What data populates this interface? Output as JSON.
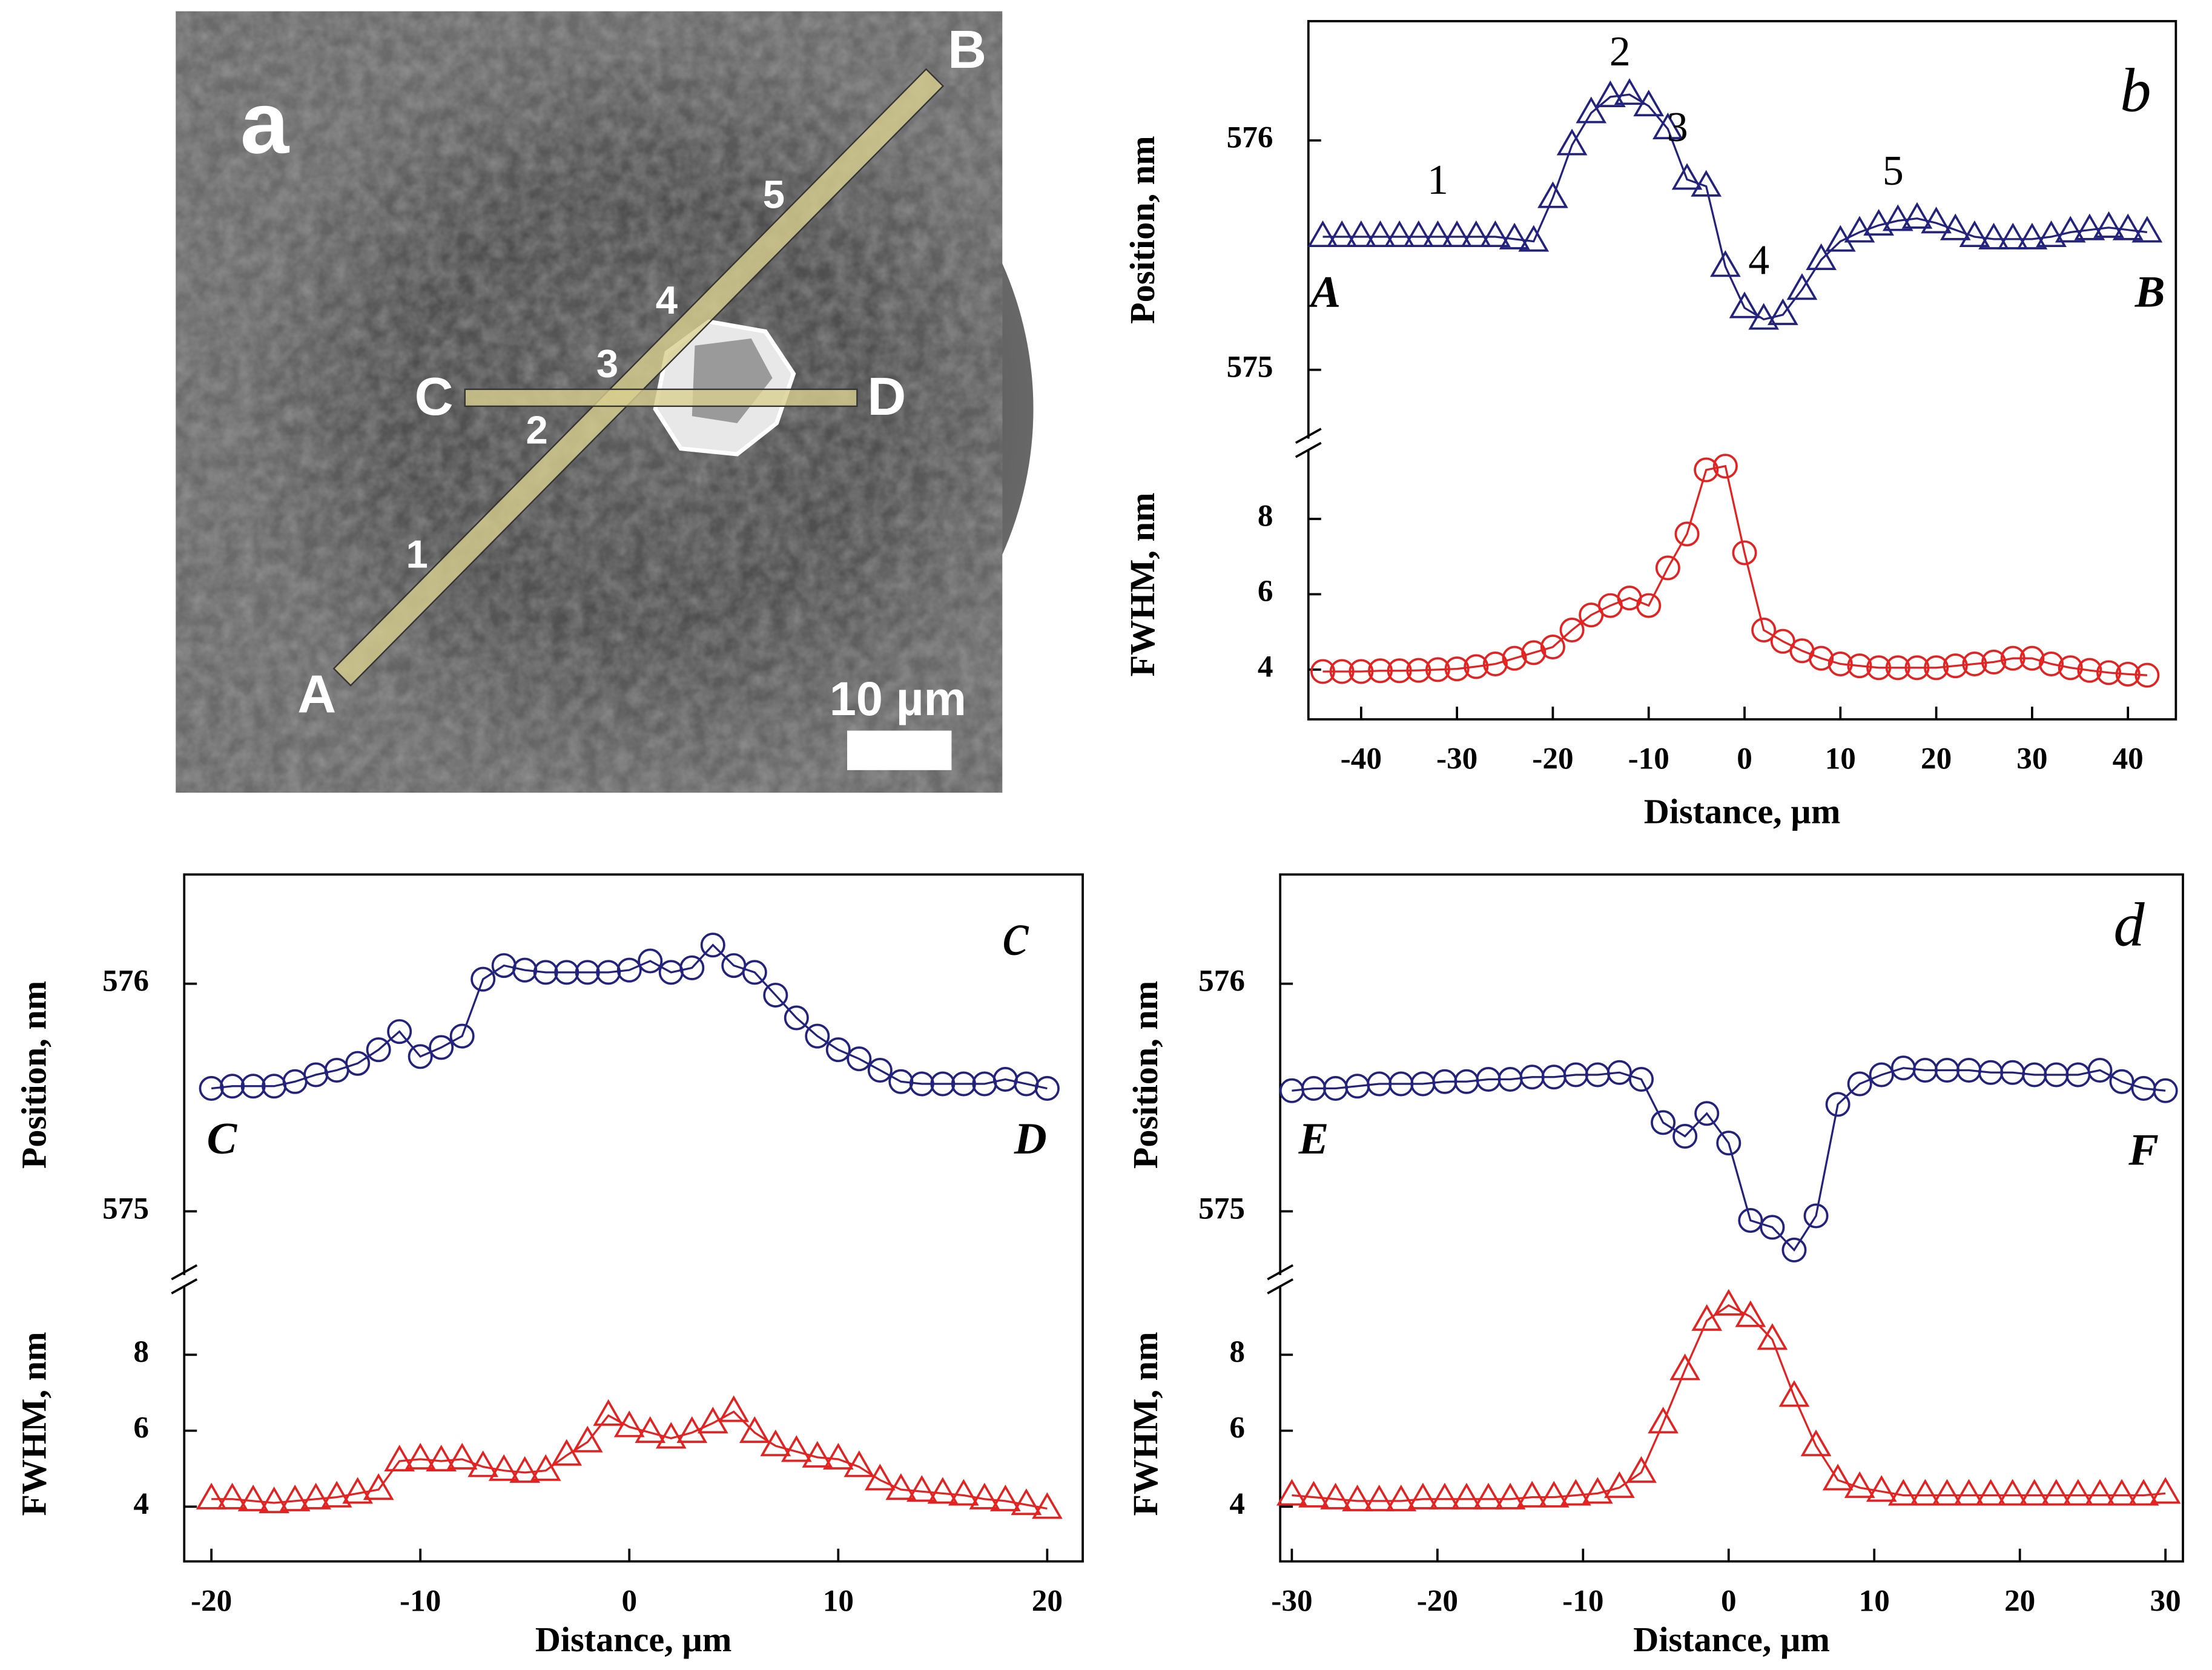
{
  "image_panel": {
    "panel_label": "a",
    "points": [
      "A",
      "B",
      "C",
      "D"
    ],
    "markers": [
      "1",
      "2",
      "3",
      "4",
      "5"
    ],
    "scale_bar": "10 µm"
  },
  "chart_data": [
    {
      "type": "line",
      "panel_label": {
        "text": "b",
        "x": 40.8,
        "y": 576.19
      },
      "xlabel": "Distance, µm",
      "x": [
        -44,
        -42,
        -40,
        -38,
        -36,
        -34,
        -32,
        -30,
        -28,
        -26,
        -24,
        -22,
        -20,
        -18,
        -16,
        -14,
        -12,
        -10,
        -8,
        -6,
        -4,
        -2,
        0,
        2,
        4,
        6,
        8,
        10,
        12,
        14,
        16,
        18,
        20,
        22,
        24,
        26,
        28,
        30,
        32,
        34,
        36,
        38,
        40,
        42
      ],
      "xlim": [
        -45.5,
        45
      ],
      "xticks": [
        -40,
        -30,
        -20,
        -10,
        0,
        10,
        20,
        30,
        40
      ],
      "subplots": [
        {
          "ylabel": "Position, nm",
          "ylim": [
            574.7,
            576.52
          ],
          "yticks": [
            575,
            576
          ],
          "color": "#23237e",
          "marker": "triangle",
          "values": [
            575.58,
            575.58,
            575.58,
            575.58,
            575.58,
            575.58,
            575.58,
            575.58,
            575.58,
            575.58,
            575.57,
            575.56,
            575.75,
            575.98,
            576.12,
            576.19,
            576.2,
            576.15,
            576.05,
            575.83,
            575.8,
            575.45,
            575.27,
            575.22,
            575.24,
            575.35,
            575.48,
            575.56,
            575.6,
            575.63,
            575.65,
            575.66,
            575.64,
            575.61,
            575.58,
            575.57,
            575.57,
            575.57,
            575.58,
            575.6,
            575.61,
            575.62,
            575.61,
            575.6
          ],
          "annotations": [
            {
              "text": "1",
              "x": -32,
              "y": 575.81
            },
            {
              "text": "2",
              "x": -13,
              "y": 576.37
            },
            {
              "text": "3",
              "x": -7,
              "y": 576.04
            },
            {
              "text": "4",
              "x": 1.5,
              "y": 575.46
            },
            {
              "text": "5",
              "x": 15.5,
              "y": 575.85
            }
          ],
          "endpoints": [
            {
              "text": "A",
              "x": -43.7,
              "y": 575.32
            },
            {
              "text": "B",
              "x": 42.3,
              "y": 575.32
            }
          ]
        },
        {
          "ylabel": "FWHM, nm",
          "ylim": [
            2.68,
            9.83
          ],
          "yticks": [
            4,
            6,
            8
          ],
          "color": "#e32222",
          "marker": "circle",
          "values": [
            3.95,
            3.95,
            3.95,
            3.97,
            3.97,
            3.98,
            4.0,
            4.02,
            4.08,
            4.15,
            4.3,
            4.45,
            4.6,
            5.05,
            5.45,
            5.7,
            5.9,
            5.7,
            6.7,
            7.6,
            9.3,
            9.4,
            7.1,
            5.05,
            4.75,
            4.5,
            4.3,
            4.15,
            4.1,
            4.05,
            4.05,
            4.05,
            4.05,
            4.1,
            4.15,
            4.2,
            4.3,
            4.3,
            4.15,
            4.05,
            3.98,
            3.92,
            3.88,
            3.85
          ]
        }
      ]
    },
    {
      "type": "line",
      "panel_label": {
        "text": "c",
        "x": 18.5,
        "y": 576.19
      },
      "xlabel": "Distance, µm",
      "x": [
        -20,
        -19,
        -18,
        -17,
        -16,
        -15,
        -14,
        -13,
        -12,
        -11,
        -10,
        -9,
        -8,
        -7,
        -6,
        -5,
        -4,
        -3,
        -2,
        -1,
        0,
        1,
        2,
        3,
        4,
        5,
        6,
        7,
        8,
        9,
        10,
        11,
        12,
        13,
        14,
        15,
        16,
        17,
        18,
        19,
        20
      ],
      "xlim": [
        -21.3,
        21.7
      ],
      "xticks": [
        -20,
        -10,
        0,
        10,
        20
      ],
      "subplots": [
        {
          "ylabel": "Position, nm",
          "ylim": [
            574.72,
            576.48
          ],
          "yticks": [
            575,
            576
          ],
          "color": "#23237e",
          "marker": "circle",
          "values": [
            575.54,
            575.55,
            575.55,
            575.55,
            575.57,
            575.6,
            575.62,
            575.65,
            575.71,
            575.79,
            575.68,
            575.72,
            575.77,
            576.02,
            576.08,
            576.06,
            576.05,
            576.05,
            576.05,
            576.05,
            576.06,
            576.1,
            576.05,
            576.07,
            576.17,
            576.08,
            576.05,
            575.95,
            575.85,
            575.77,
            575.71,
            575.67,
            575.62,
            575.57,
            575.56,
            575.56,
            575.56,
            575.56,
            575.58,
            575.56,
            575.54
          ],
          "endpoints": [
            {
              "text": "C",
              "x": -19.5,
              "y": 575.3
            },
            {
              "text": "D",
              "x": 19.2,
              "y": 575.3
            }
          ]
        },
        {
          "ylabel": "FWHM, nm",
          "ylim": [
            2.56,
            9.8
          ],
          "yticks": [
            4,
            6,
            8
          ],
          "color": "#e32222",
          "marker": "triangle",
          "values": [
            4.2,
            4.2,
            4.15,
            4.1,
            4.15,
            4.2,
            4.25,
            4.35,
            4.45,
            5.2,
            5.25,
            5.2,
            5.25,
            5.05,
            4.95,
            4.9,
            4.95,
            5.35,
            5.7,
            6.4,
            6.1,
            5.95,
            5.8,
            5.95,
            6.2,
            6.5,
            5.95,
            5.6,
            5.45,
            5.3,
            5.25,
            5.05,
            4.7,
            4.45,
            4.4,
            4.35,
            4.3,
            4.2,
            4.15,
            4.05,
            3.95
          ]
        }
      ]
    },
    {
      "type": "line",
      "panel_label": {
        "text": "d",
        "x": 27.5,
        "y": 576.23
      },
      "xlabel": "Distance, µm",
      "x": [
        -30,
        -28.5,
        -27,
        -25.5,
        -24,
        -22.5,
        -21,
        -19.5,
        -18,
        -16.5,
        -15,
        -13.5,
        -12,
        -10.5,
        -9,
        -7.5,
        -6,
        -4.5,
        -3,
        -1.5,
        0,
        1.5,
        3,
        4.5,
        6,
        7.5,
        9,
        10.5,
        12,
        13.5,
        15,
        16.5,
        18,
        19.5,
        21,
        22.5,
        24,
        25.5,
        27,
        28.5,
        30
      ],
      "xlim": [
        -30.8,
        31.2
      ],
      "xticks": [
        -30,
        -20,
        -10,
        0,
        10,
        20,
        30
      ],
      "subplots": [
        {
          "ylabel": "Position, nm",
          "ylim": [
            574.72,
            576.48
          ],
          "yticks": [
            575,
            576
          ],
          "color": "#23237e",
          "marker": "circle",
          "values": [
            575.53,
            575.54,
            575.54,
            575.55,
            575.56,
            575.56,
            575.56,
            575.57,
            575.57,
            575.58,
            575.58,
            575.59,
            575.59,
            575.6,
            575.6,
            575.61,
            575.58,
            575.39,
            575.33,
            575.43,
            575.3,
            574.96,
            574.93,
            574.83,
            574.98,
            575.47,
            575.56,
            575.6,
            575.63,
            575.62,
            575.62,
            575.62,
            575.61,
            575.61,
            575.6,
            575.6,
            575.6,
            575.62,
            575.57,
            575.54,
            575.53
          ],
          "endpoints": [
            {
              "text": "E",
              "x": -28.5,
              "y": 575.3
            },
            {
              "text": "F",
              "x": 28.5,
              "y": 575.25
            }
          ]
        },
        {
          "ylabel": "FWHM, nm",
          "ylim": [
            2.56,
            9.8
          ],
          "yticks": [
            4,
            6,
            8
          ],
          "color": "#e32222",
          "marker": "triangle",
          "values": [
            4.3,
            4.25,
            4.2,
            4.15,
            4.15,
            4.15,
            4.2,
            4.2,
            4.2,
            4.2,
            4.2,
            4.25,
            4.25,
            4.3,
            4.35,
            4.5,
            4.9,
            6.2,
            7.6,
            8.9,
            9.3,
            9.0,
            8.4,
            6.9,
            5.6,
            4.7,
            4.5,
            4.4,
            4.3,
            4.3,
            4.3,
            4.3,
            4.3,
            4.3,
            4.3,
            4.3,
            4.3,
            4.3,
            4.3,
            4.3,
            4.35
          ]
        }
      ]
    }
  ]
}
